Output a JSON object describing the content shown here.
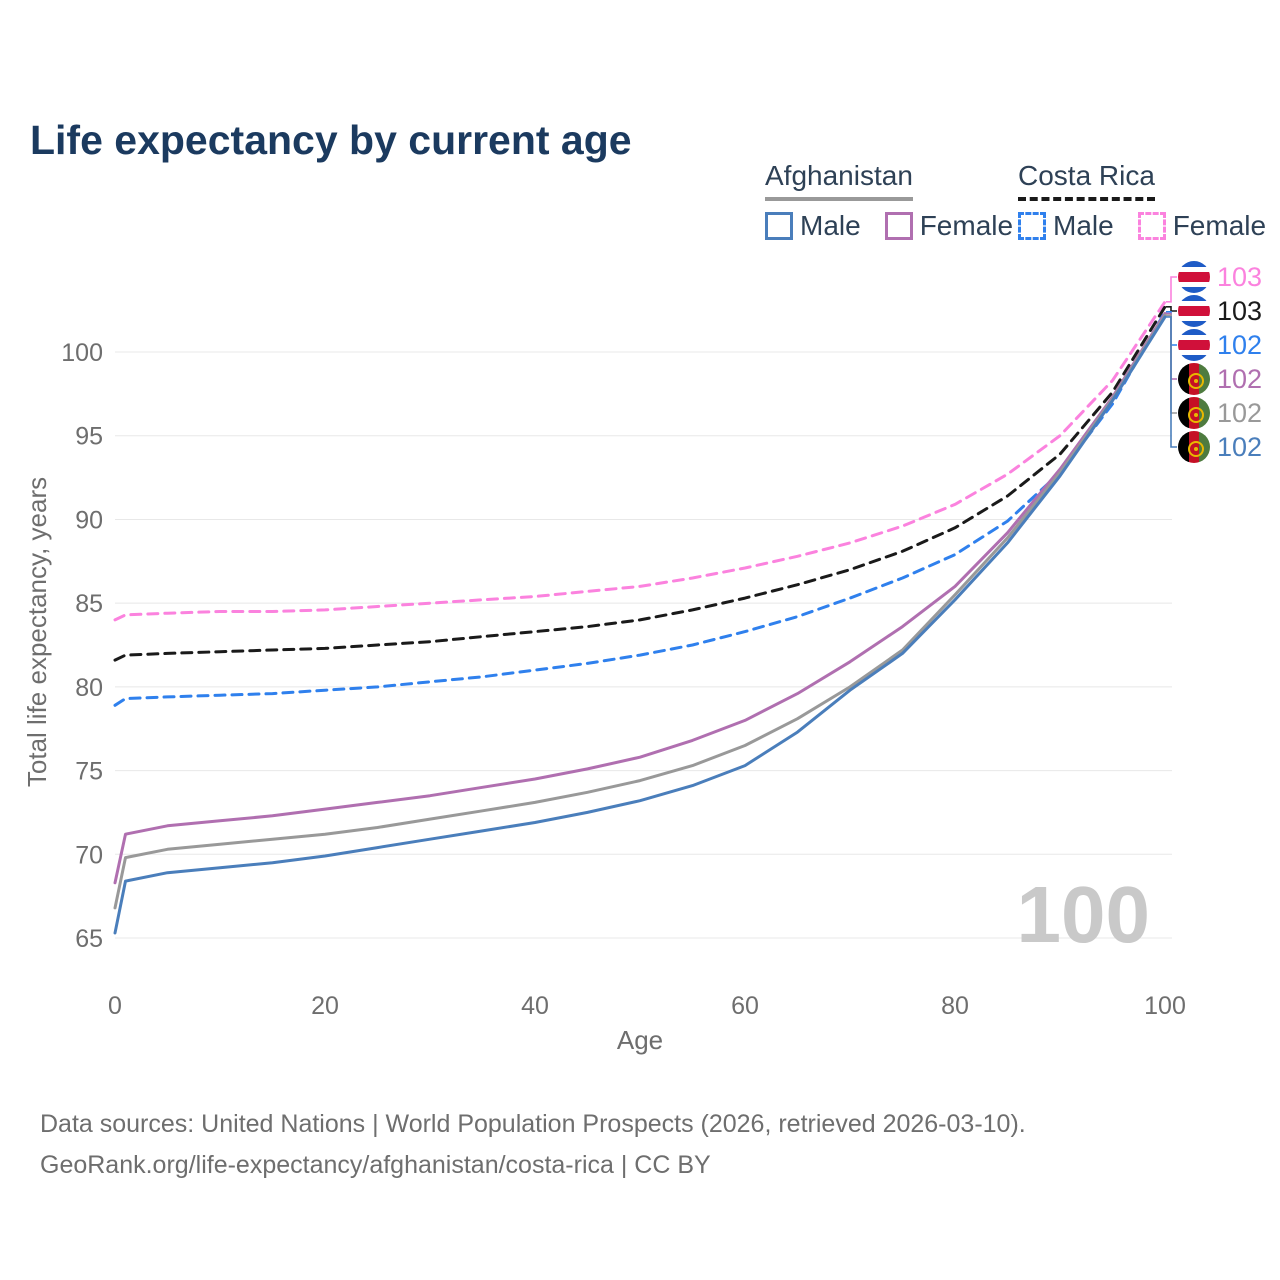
{
  "title": "Life expectancy by current age",
  "watermark": "100",
  "legend": {
    "groups": [
      {
        "country": "Afghanistan",
        "line_style": "solid",
        "underline_color": "#999999",
        "items": [
          {
            "label": "Male",
            "color": "#4a7ebb"
          },
          {
            "label": "Female",
            "color": "#b06fb0"
          }
        ]
      },
      {
        "country": "Costa Rica",
        "line_style": "dashed",
        "underline_color": "#1a1a1a",
        "items": [
          {
            "label": "Male",
            "color": "#2f80ed"
          },
          {
            "label": "Female",
            "color": "#fb82de"
          }
        ]
      }
    ]
  },
  "footer": {
    "line1": "Data sources: United Nations | World Population Prospects (2026, retrieved 2026-03-10).",
    "line2": "GeoRank.org/life-expectancy/afghanistan/costa-rica | CC BY"
  },
  "chart_data": {
    "type": "line",
    "title": "Life expectancy by current age",
    "xlabel": "Age",
    "ylabel": "Total life expectancy, years",
    "xlim": [
      0,
      100
    ],
    "ylim": [
      65,
      103.5
    ],
    "xticks": [
      0,
      20,
      40,
      60,
      80,
      100
    ],
    "yticks": [
      65,
      70,
      75,
      80,
      85,
      90,
      95,
      100
    ],
    "grid": "horizontal",
    "legend_position": "top-right",
    "x": [
      0,
      1,
      5,
      10,
      15,
      20,
      25,
      30,
      35,
      40,
      45,
      50,
      55,
      60,
      65,
      70,
      75,
      80,
      85,
      90,
      95,
      100
    ],
    "series": [
      {
        "name": "Costa Rica Female",
        "country": "Costa Rica",
        "sex": "Female",
        "style": "dashed",
        "color": "#fb82de",
        "flag": "cr",
        "end_label": "103",
        "values": [
          84.0,
          84.3,
          84.4,
          84.5,
          84.5,
          84.6,
          84.8,
          85.0,
          85.2,
          85.4,
          85.7,
          86.0,
          86.5,
          87.1,
          87.8,
          88.6,
          89.6,
          90.9,
          92.7,
          95.0,
          98.3,
          103.0
        ]
      },
      {
        "name": "Costa Rica Both sexes",
        "country": "Costa Rica",
        "sex": "Both",
        "style": "dashed",
        "color": "#1a1a1a",
        "flag": "cr",
        "end_label": "103",
        "values": [
          81.6,
          81.9,
          82.0,
          82.1,
          82.2,
          82.3,
          82.5,
          82.7,
          83.0,
          83.3,
          83.6,
          84.0,
          84.6,
          85.3,
          86.1,
          87.0,
          88.1,
          89.5,
          91.4,
          93.9,
          97.6,
          102.7
        ]
      },
      {
        "name": "Costa Rica Male",
        "country": "Costa Rica",
        "sex": "Male",
        "style": "dashed",
        "color": "#2f80ed",
        "flag": "cr",
        "end_label": "102",
        "values": [
          78.9,
          79.3,
          79.4,
          79.5,
          79.6,
          79.8,
          80.0,
          80.3,
          80.6,
          81.0,
          81.4,
          81.9,
          82.5,
          83.3,
          84.2,
          85.3,
          86.5,
          87.9,
          89.9,
          92.8,
          96.9,
          102.4
        ]
      },
      {
        "name": "Afghanistan Female",
        "country": "Afghanistan",
        "sex": "Female",
        "style": "solid",
        "color": "#b06fb0",
        "flag": "af",
        "end_label": "102",
        "values": [
          68.3,
          71.2,
          71.7,
          72.0,
          72.3,
          72.7,
          73.1,
          73.5,
          74.0,
          74.5,
          75.1,
          75.8,
          76.8,
          78.0,
          79.6,
          81.5,
          83.6,
          86.0,
          89.2,
          93.0,
          97.3,
          102.3
        ]
      },
      {
        "name": "Afghanistan Both sexes",
        "country": "Afghanistan",
        "sex": "Both",
        "style": "solid",
        "color": "#999999",
        "flag": "af",
        "end_label": "102",
        "values": [
          66.8,
          69.8,
          70.3,
          70.6,
          70.9,
          71.2,
          71.6,
          72.1,
          72.6,
          73.1,
          73.7,
          74.4,
          75.3,
          76.5,
          78.1,
          80.0,
          82.2,
          85.5,
          88.9,
          92.8,
          97.2,
          102.2
        ]
      },
      {
        "name": "Afghanistan Male",
        "country": "Afghanistan",
        "sex": "Male",
        "style": "solid",
        "color": "#4a7ebb",
        "flag": "af",
        "end_label": "102",
        "values": [
          65.3,
          68.4,
          68.9,
          69.2,
          69.5,
          69.9,
          70.4,
          70.9,
          71.4,
          71.9,
          72.5,
          73.2,
          74.1,
          75.3,
          77.3,
          79.8,
          82.0,
          85.2,
          88.6,
          92.6,
          97.1,
          102.1
        ]
      }
    ]
  }
}
